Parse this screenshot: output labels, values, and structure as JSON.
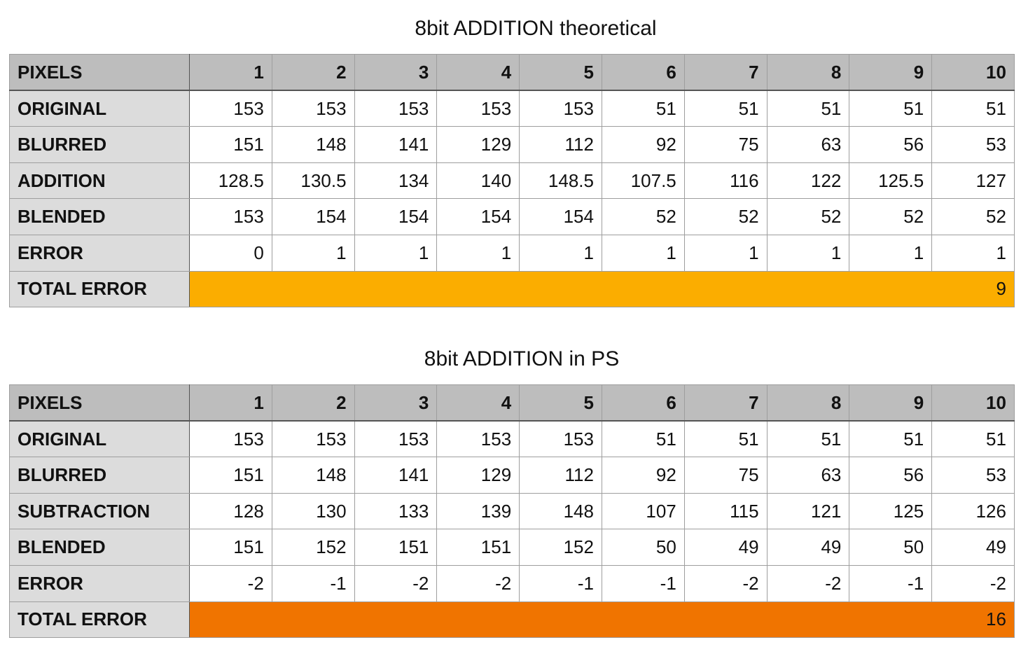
{
  "tables": [
    {
      "title": "8bit ADDITION  theoretical",
      "header": [
        "PIXELS",
        "1",
        "2",
        "3",
        "4",
        "5",
        "6",
        "7",
        "8",
        "9",
        "10"
      ],
      "rows": [
        {
          "label": "ORIGINAL",
          "values": [
            "153",
            "153",
            "153",
            "153",
            "153",
            "51",
            "51",
            "51",
            "51",
            "51"
          ]
        },
        {
          "label": "BLURRED",
          "values": [
            "151",
            "148",
            "141",
            "129",
            "112",
            "92",
            "75",
            "63",
            "56",
            "53"
          ]
        },
        {
          "label": "ADDITION",
          "values": [
            "128.5",
            "130.5",
            "134",
            "140",
            "148.5",
            "107.5",
            "116",
            "122",
            "125.5",
            "127"
          ]
        },
        {
          "label": "BLENDED",
          "values": [
            "153",
            "154",
            "154",
            "154",
            "154",
            "52",
            "52",
            "52",
            "52",
            "52"
          ]
        },
        {
          "label": "ERROR",
          "values": [
            "0",
            "1",
            "1",
            "1",
            "1",
            "1",
            "1",
            "1",
            "1",
            "1"
          ]
        }
      ],
      "total": {
        "label": "TOTAL ERROR",
        "value": "9",
        "color": "#FBAD00"
      }
    },
    {
      "title": "8bit ADDITION in PS",
      "header": [
        "PIXELS",
        "1",
        "2",
        "3",
        "4",
        "5",
        "6",
        "7",
        "8",
        "9",
        "10"
      ],
      "rows": [
        {
          "label": "ORIGINAL",
          "values": [
            "153",
            "153",
            "153",
            "153",
            "153",
            "51",
            "51",
            "51",
            "51",
            "51"
          ]
        },
        {
          "label": "BLURRED",
          "values": [
            "151",
            "148",
            "141",
            "129",
            "112",
            "92",
            "75",
            "63",
            "56",
            "53"
          ]
        },
        {
          "label": "SUBTRACTION",
          "values": [
            "128",
            "130",
            "133",
            "139",
            "148",
            "107",
            "115",
            "121",
            "125",
            "126"
          ]
        },
        {
          "label": "BLENDED",
          "values": [
            "151",
            "152",
            "151",
            "151",
            "152",
            "50",
            "49",
            "49",
            "50",
            "49"
          ]
        },
        {
          "label": "ERROR",
          "values": [
            "-2",
            "-1",
            "-2",
            "-2",
            "-1",
            "-1",
            "-2",
            "-2",
            "-1",
            "-2"
          ]
        }
      ],
      "total": {
        "label": "TOTAL ERROR",
        "value": "16",
        "color": "#F07400"
      }
    }
  ]
}
